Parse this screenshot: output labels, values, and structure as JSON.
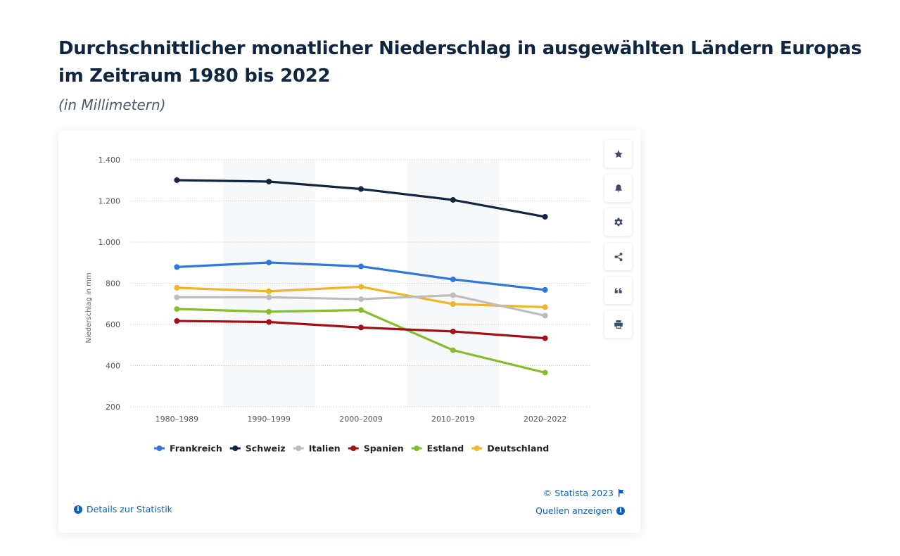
{
  "header": {
    "title": "Durchschnittlicher monatlicher Niederschlag in ausgewählten Ländern Europas im Zeitraum 1980 bis 2022",
    "subtitle": "(in Millimetern)"
  },
  "toolbar": [
    {
      "name": "favorite",
      "icon": "star-icon"
    },
    {
      "name": "notification",
      "icon": "bell-icon"
    },
    {
      "name": "settings",
      "icon": "gear-icon"
    },
    {
      "name": "share",
      "icon": "share-icon"
    },
    {
      "name": "cite",
      "icon": "quote-icon"
    },
    {
      "name": "print",
      "icon": "printer-icon"
    }
  ],
  "footer": {
    "details_label": "Details zur Statistik",
    "copyright": "© Statista 2023",
    "sources_label": "Quellen anzeigen"
  },
  "chart_data": {
    "type": "line",
    "title": "Durchschnittlicher monatlicher Niederschlag in ausgewählten Ländern Europas im Zeitraum 1980 bis 2022",
    "subtitle": "(in Millimetern)",
    "xlabel": "",
    "ylabel": "Niederschlag in mm",
    "categories": [
      "1980–1989",
      "1990–1999",
      "2000–2009",
      "2010–2019",
      "2020–2022"
    ],
    "ylim": [
      200,
      1400
    ],
    "yticks": [
      200,
      400,
      600,
      800,
      1000,
      1200,
      1400
    ],
    "ytick_labels": [
      "200",
      "400",
      "600",
      "800",
      "1.000",
      "1.200",
      "1.400"
    ],
    "grid": true,
    "legend_position": "bottom",
    "series": [
      {
        "name": "Frankreich",
        "color": "#2f77d8",
        "values": [
          879,
          901,
          882,
          819,
          768
        ]
      },
      {
        "name": "Schweiz",
        "color": "#0f2540",
        "values": [
          1301,
          1294,
          1258,
          1205,
          1123
        ]
      },
      {
        "name": "Italien",
        "color": "#bdbdbd",
        "values": [
          732,
          732,
          723,
          742,
          643
        ]
      },
      {
        "name": "Spanien",
        "color": "#a30f16",
        "values": [
          617,
          612,
          585,
          566,
          533
        ]
      },
      {
        "name": "Estland",
        "color": "#86bd2e",
        "values": [
          675,
          662,
          670,
          475,
          366
        ]
      },
      {
        "name": "Deutschland",
        "color": "#f0b429",
        "values": [
          778,
          761,
          783,
          699,
          684
        ]
      }
    ]
  }
}
